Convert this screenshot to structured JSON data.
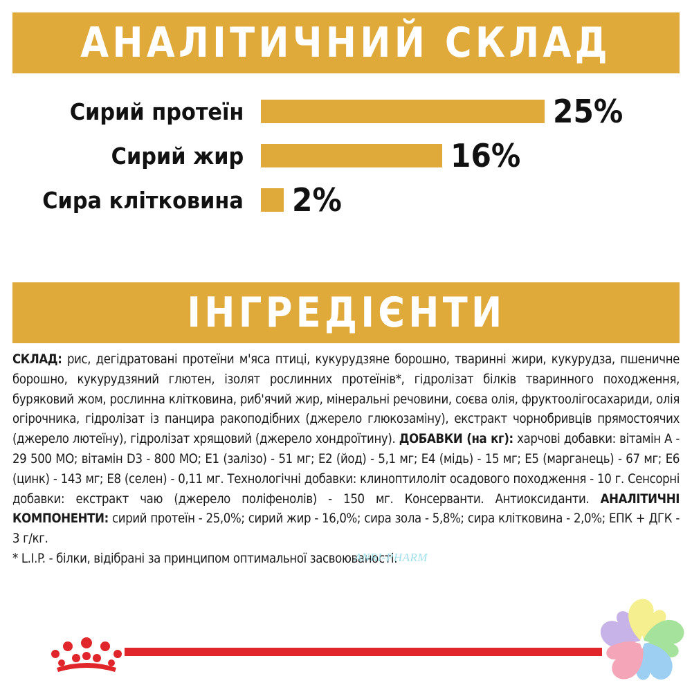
{
  "headers": {
    "analytic": "АНАЛІТИЧНИЙ СКЛАД",
    "ingredients": "ІНГРЕДІЄНТИ"
  },
  "composition": [
    {
      "label": "Сирий протеїн",
      "value": "25%",
      "percent": 25
    },
    {
      "label": "Сирий жир",
      "value": "16%",
      "percent": 16
    },
    {
      "label": "Сира клітковина",
      "value": "2%",
      "percent": 2
    }
  ],
  "ingredients": {
    "sklad_label": "СКЛАД:",
    "sklad_text": " рис, дегідратовані протеїни м'яса птиці, кукурудзяне борошно, тваринні жири, кукурудза, пшеничне борошно, кукурудзяний глютен, ізолят рослинних протеїнів*, гідролізат білків тваринного походження, буряковий жом, рослинна клітковина, риб'ячий жир, мінеральні речовини, соєва олія, фруктоолігосахариди, олія огірочника, гідролізат із панцира ракоподібних (джерело глюкозаміну), екстракт чорнобривців прямостоячих (джерело лютеїну), гідролізат хрящовий (джерело хондроїтину). ",
    "additives_label": "ДОБАВКИ (на кг):",
    "additives_text": " харчові добавки: вітамін А - 29 500 МО; вітамін D3 - 800 МО; Е1 (залізо) - 51 мг; Е2 (йод) - 5,1 мг; Е4 (мідь) - 15 мг; Е5 (марганець) - 67 мг; Е6 (цинк) - 143 мг; Е8 (селен) - 0,11 мг. Технологічні добавки: клиноптилоліт осадового походження - 10 г. Сенсорні добавки: екстракт чаю (джерело поліфенолів) - 150 мг. Консерванти. Антиоксиданти. ",
    "analytic_label": "АНАЛІТИЧНІ КОМПОНЕНТИ:",
    "analytic_text": " сирий протеїн - 25,0%; сирий жир - 16,0%; сира зола - 5,8%; сира клітковина - 2,0%; ЕПК + ДГК - 3 г/кг.",
    "footnote": "* L.I.P. - білки, відібрані за принципом оптимальної засвоюваності."
  },
  "watermark": "ANRI-PHARM",
  "colors": {
    "accent": "#e0aa3a",
    "brand_red": "#e0262a",
    "text": "#111111"
  },
  "icons": [
    "royal-canin-crown-icon",
    "clover-flower-logo-icon"
  ]
}
